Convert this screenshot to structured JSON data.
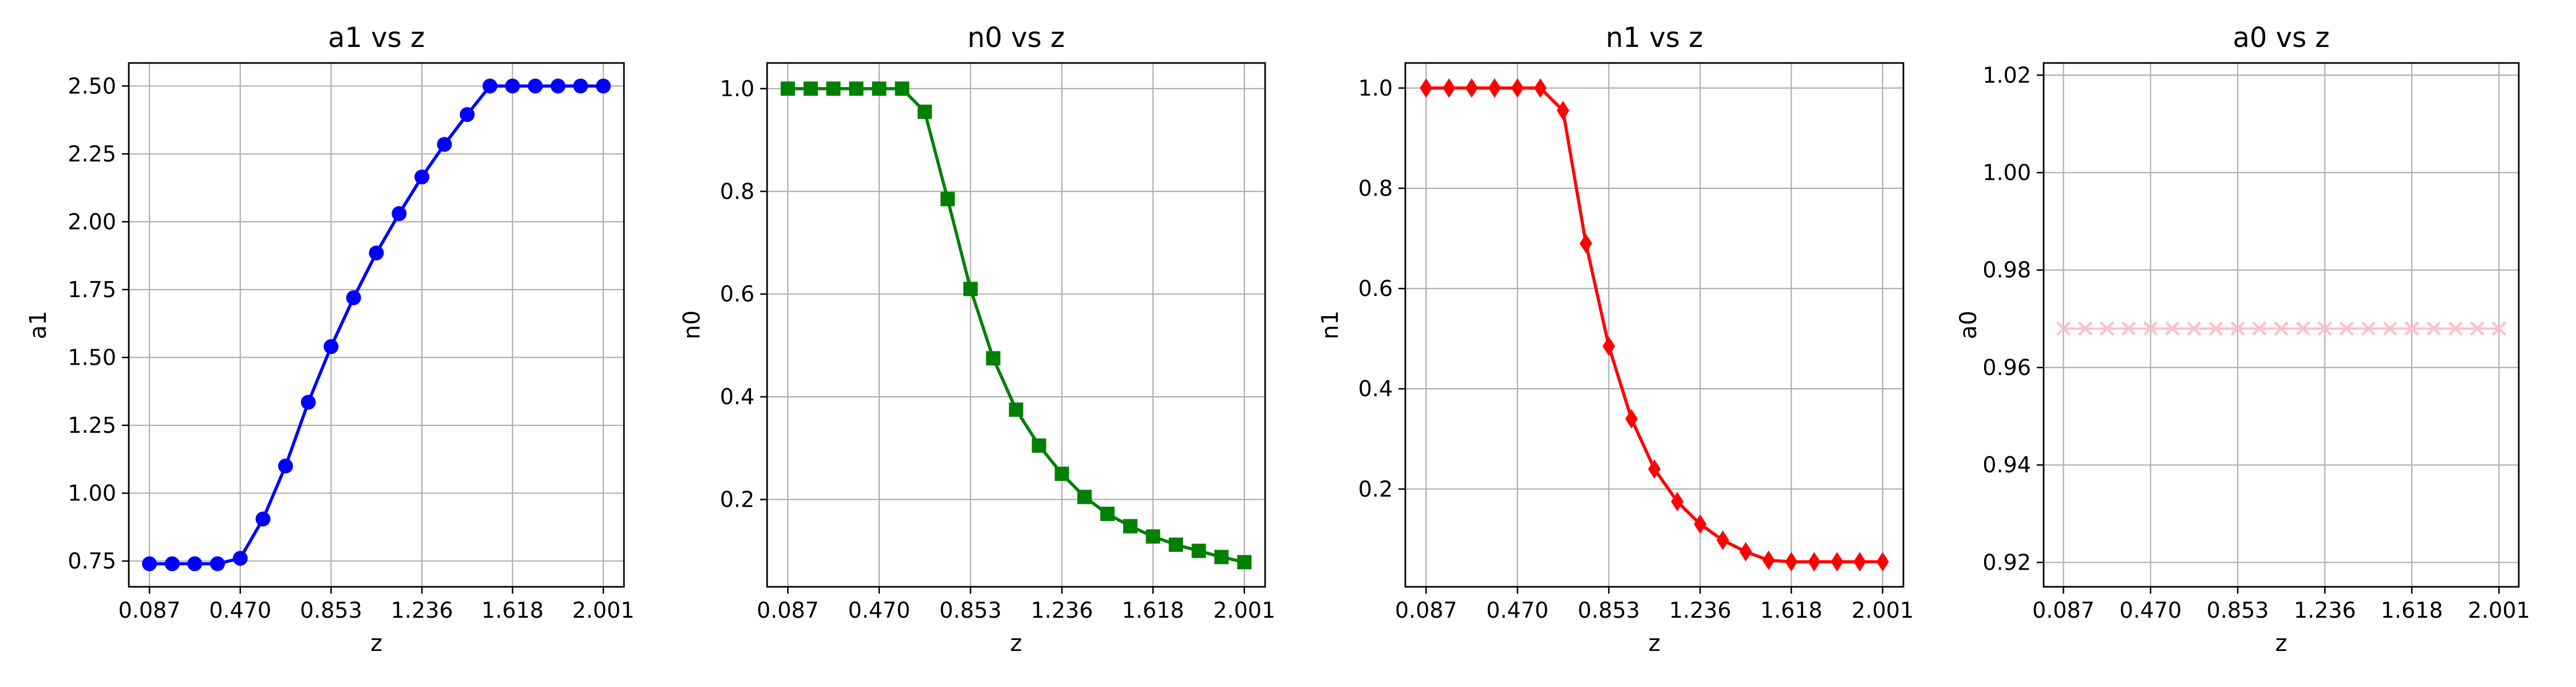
{
  "chart_data": [
    {
      "type": "line",
      "title": "a1 vs z",
      "xlabel": "z",
      "ylabel": "a1",
      "xticks": [
        "0.087",
        "0.470",
        "0.853",
        "1.236",
        "1.618",
        "2.001"
      ],
      "yticks": [
        "0.75",
        "1.00",
        "1.25",
        "1.50",
        "1.75",
        "2.00",
        "2.25",
        "2.50"
      ],
      "ylim": [
        0.655,
        2.585
      ],
      "grid": true,
      "marker": "circle",
      "color": "#0000ff",
      "x": [
        0.087,
        0.183,
        0.278,
        0.374,
        0.47,
        0.566,
        0.661,
        0.757,
        0.853,
        0.948,
        1.044,
        1.14,
        1.236,
        1.331,
        1.427,
        1.523,
        1.618,
        1.714,
        1.81,
        1.905,
        2.001
      ],
      "series": [
        {
          "values": [
            0.74,
            0.74,
            0.74,
            0.74,
            0.76,
            0.905,
            1.1,
            1.335,
            1.54,
            1.72,
            1.885,
            2.03,
            2.165,
            2.285,
            2.395,
            2.5,
            2.5,
            2.5,
            2.5,
            2.5,
            2.5
          ]
        }
      ]
    },
    {
      "type": "line",
      "title": "n0 vs z",
      "xlabel": "z",
      "ylabel": "n0",
      "xticks": [
        "0.087",
        "0.470",
        "0.853",
        "1.236",
        "1.618",
        "2.001"
      ],
      "yticks": [
        "0.2",
        "0.4",
        "0.6",
        "0.8",
        "1.0"
      ],
      "ylim": [
        0.03,
        1.05
      ],
      "grid": true,
      "marker": "square",
      "color": "#008000",
      "x": [
        0.087,
        0.183,
        0.278,
        0.374,
        0.47,
        0.566,
        0.661,
        0.757,
        0.853,
        0.948,
        1.044,
        1.14,
        1.236,
        1.331,
        1.427,
        1.523,
        1.618,
        1.714,
        1.81,
        1.905,
        2.001
      ],
      "series": [
        {
          "values": [
            1.0,
            1.0,
            1.0,
            1.0,
            1.0,
            1.0,
            0.955,
            0.785,
            0.61,
            0.475,
            0.375,
            0.305,
            0.25,
            0.205,
            0.172,
            0.148,
            0.128,
            0.112,
            0.1,
            0.088,
            0.078
          ]
        }
      ]
    },
    {
      "type": "line",
      "title": "n1 vs z",
      "xlabel": "z",
      "ylabel": "n1",
      "xticks": [
        "0.087",
        "0.470",
        "0.853",
        "1.236",
        "1.618",
        "2.001"
      ],
      "yticks": [
        "0.2",
        "0.4",
        "0.6",
        "0.8",
        "1.0"
      ],
      "ylim": [
        0.005,
        1.05
      ],
      "grid": true,
      "marker": "diamond",
      "color": "#ff0000",
      "x": [
        0.087,
        0.183,
        0.278,
        0.374,
        0.47,
        0.566,
        0.661,
        0.757,
        0.853,
        0.948,
        1.044,
        1.14,
        1.236,
        1.331,
        1.427,
        1.523,
        1.618,
        1.714,
        1.81,
        1.905,
        2.001
      ],
      "series": [
        {
          "values": [
            1.0,
            1.0,
            1.0,
            1.0,
            1.0,
            1.0,
            0.955,
            0.69,
            0.485,
            0.34,
            0.24,
            0.175,
            0.13,
            0.098,
            0.075,
            0.058,
            0.055,
            0.055,
            0.055,
            0.055,
            0.055
          ]
        }
      ]
    },
    {
      "type": "line",
      "title": "a0 vs z",
      "xlabel": "z",
      "ylabel": "a0",
      "xticks": [
        "0.087",
        "0.470",
        "0.853",
        "1.236",
        "1.618",
        "2.001"
      ],
      "yticks": [
        "0.92",
        "0.94",
        "0.96",
        "0.98",
        "1.00",
        "1.02"
      ],
      "ylim": [
        0.915,
        1.0225
      ],
      "grid": true,
      "marker": "x",
      "color": "#ffc0cb",
      "x": [
        0.087,
        0.183,
        0.278,
        0.374,
        0.47,
        0.566,
        0.661,
        0.757,
        0.853,
        0.948,
        1.044,
        1.14,
        1.236,
        1.331,
        1.427,
        1.523,
        1.618,
        1.714,
        1.81,
        1.905,
        2.001
      ],
      "series": [
        {
          "values": [
            0.968,
            0.968,
            0.968,
            0.968,
            0.968,
            0.968,
            0.968,
            0.968,
            0.968,
            0.968,
            0.968,
            0.968,
            0.968,
            0.968,
            0.968,
            0.968,
            0.968,
            0.968,
            0.968,
            0.968,
            0.968
          ]
        }
      ]
    }
  ]
}
